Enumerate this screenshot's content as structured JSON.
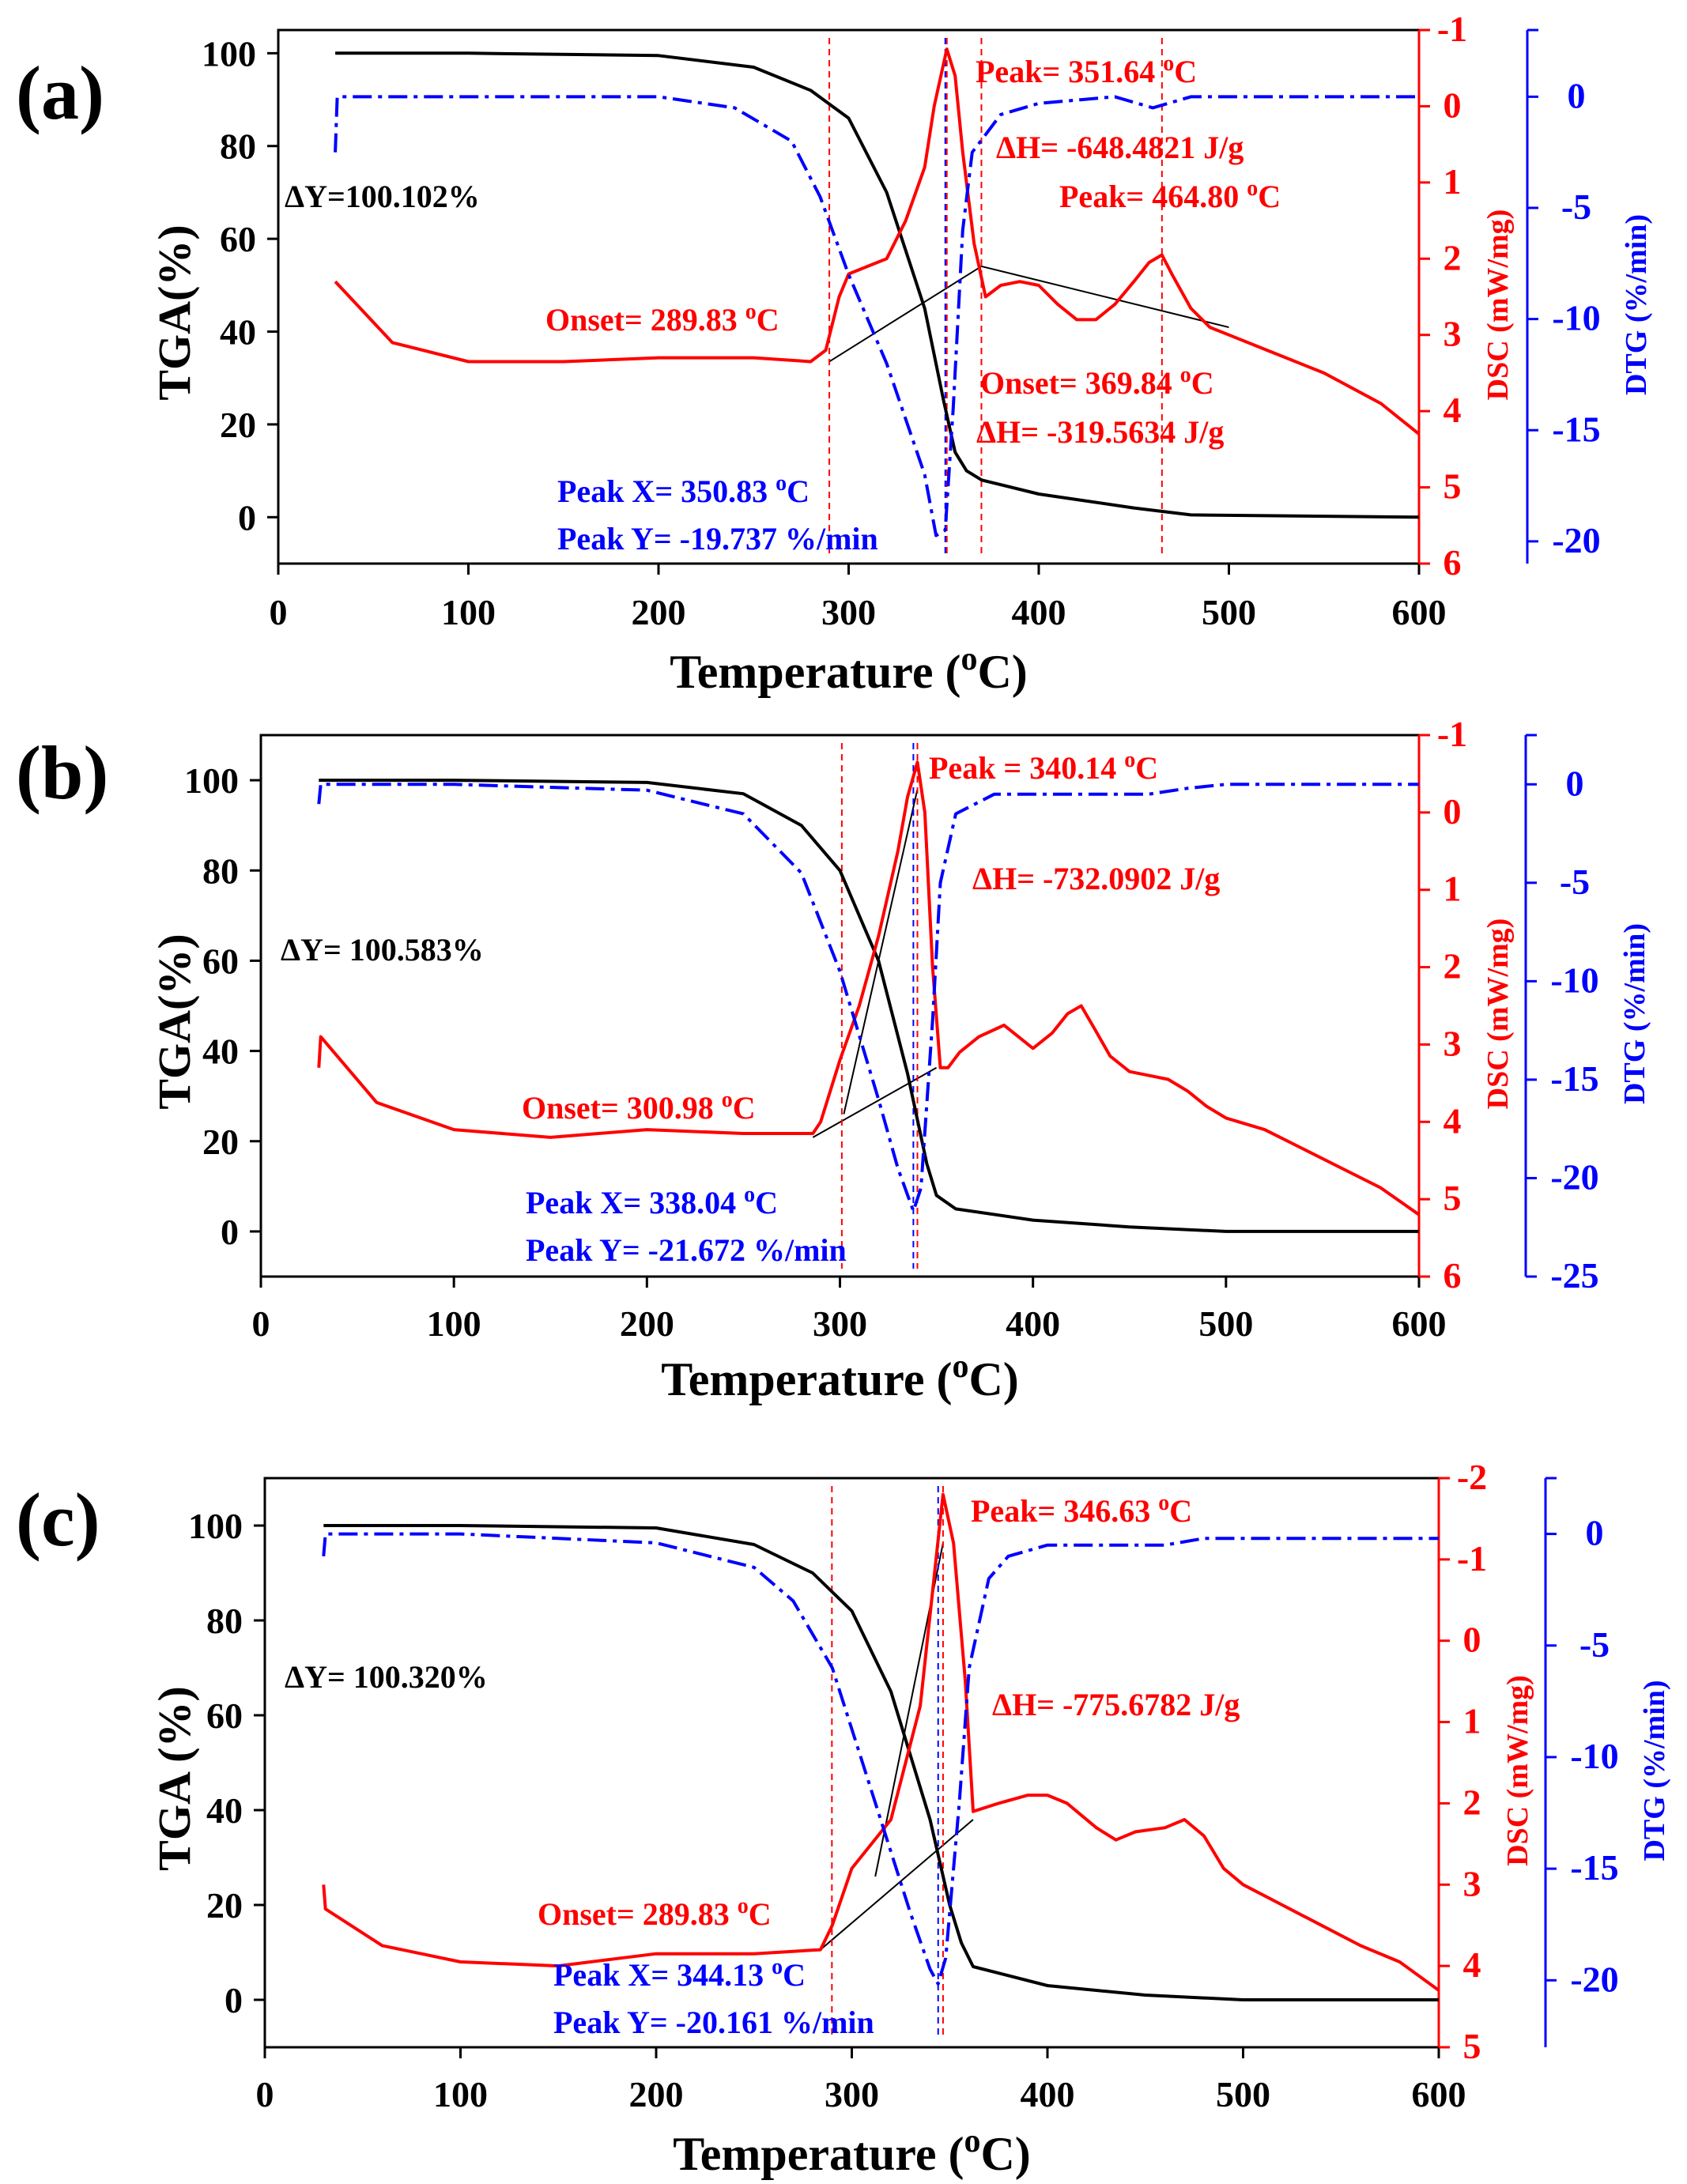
{
  "chart_data": [
    {
      "panel": "(a)",
      "type": "line",
      "xlabel": "Temperature (°C)",
      "xlim": [
        0,
        600
      ],
      "xticks": [
        0,
        100,
        200,
        300,
        400,
        500,
        600
      ],
      "y_left": {
        "label": "TGA(%)",
        "lim": [
          -10,
          105
        ],
        "ticks": [
          0,
          20,
          40,
          60,
          80,
          100
        ]
      },
      "y_dsc": {
        "label": "DSC (mW/mg)",
        "lim": [
          6,
          -1
        ],
        "ticks": [
          -1,
          0,
          1,
          2,
          3,
          4,
          5,
          6
        ],
        "color": "#ff0000"
      },
      "y_dtg": {
        "label": "DTG (%/min)",
        "lim": [
          -21,
          3
        ],
        "ticks": [
          0,
          -5,
          -10,
          -15,
          -20
        ],
        "color": "#0000ff"
      },
      "series": [
        {
          "name": "TGA",
          "axis": "left",
          "color": "#000000",
          "x": [
            30,
            100,
            200,
            250,
            280,
            300,
            320,
            340,
            350,
            356,
            362,
            370,
            400,
            450,
            480,
            600
          ],
          "y": [
            100,
            100,
            99.5,
            97,
            92,
            86,
            70,
            45,
            25,
            14,
            10,
            8,
            5,
            2,
            0.5,
            0
          ]
        },
        {
          "name": "DSC",
          "axis": "dsc",
          "color": "#ff0000",
          "x": [
            30,
            60,
            100,
            150,
            200,
            250,
            280,
            288,
            295,
            300,
            310,
            320,
            330,
            340,
            345,
            351.64,
            356,
            360,
            366,
            372,
            380,
            390,
            400,
            410,
            420,
            430,
            440,
            450,
            458,
            464.8,
            470,
            480,
            490,
            500,
            520,
            550,
            580,
            600
          ],
          "y": [
            2.3,
            3.1,
            3.35,
            3.35,
            3.3,
            3.3,
            3.35,
            3.2,
            2.5,
            2.2,
            2.1,
            2.0,
            1.5,
            0.8,
            0,
            -0.75,
            -0.4,
            0.6,
            1.8,
            2.5,
            2.35,
            2.3,
            2.35,
            2.6,
            2.8,
            2.8,
            2.6,
            2.3,
            2.05,
            1.95,
            2.2,
            2.65,
            2.9,
            3.0,
            3.2,
            3.5,
            3.9,
            4.3
          ]
        },
        {
          "name": "DTG",
          "axis": "dtg",
          "color": "#0000ff",
          "x": [
            30,
            31,
            100,
            200,
            240,
            270,
            285,
            300,
            320,
            340,
            346,
            350.83,
            355,
            360,
            365,
            380,
            400,
            440,
            460,
            480,
            600
          ],
          "y": [
            -2.5,
            0,
            0,
            0,
            -0.5,
            -2,
            -4.5,
            -8,
            -12,
            -17,
            -19.737,
            -19.5,
            -14,
            -6,
            -2.5,
            -0.8,
            -0.3,
            0,
            -0.5,
            0,
            0
          ]
        }
      ],
      "baselines": [
        {
          "x": [
            289.83,
            369.84
          ],
          "y": [
            3.35,
            2.1
          ]
        },
        {
          "x": [
            369.84,
            500
          ],
          "y": [
            2.1,
            2.9
          ]
        }
      ],
      "annotations": {
        "delta_y": "ΔY=100.102%",
        "peak1": "Peak= 351.64 °C",
        "dh1": "ΔH= -648.4821 J/g",
        "peak2": "Peak= 464.80 °C",
        "onset1": "Onset= 289.83 °C",
        "onset2": "Onset= 369.84 °C",
        "dh2": "ΔH= -319.5634 J/g",
        "peak_x": "Peak X= 350.83 °C",
        "peak_y": "Peak Y= -19.737 %/min"
      }
    },
    {
      "panel": "(b)",
      "type": "line",
      "xlabel": "Temperature (°C)",
      "xlim": [
        0,
        600
      ],
      "xticks": [
        0,
        100,
        200,
        300,
        400,
        500,
        600
      ],
      "y_left": {
        "label": "TGA(%)",
        "lim": [
          -10,
          110
        ],
        "ticks": [
          0,
          20,
          40,
          60,
          80,
          100
        ]
      },
      "y_dsc": {
        "label": "DSC (mW/mg)",
        "lim": [
          6,
          -1
        ],
        "ticks": [
          -1,
          0,
          1,
          2,
          3,
          4,
          5,
          6
        ],
        "color": "#ff0000"
      },
      "y_dtg": {
        "label": "DTG (%/min)",
        "lim": [
          -25,
          2.5
        ],
        "ticks": [
          0,
          -5,
          -10,
          -15,
          -20,
          -25
        ],
        "color": "#0000ff"
      },
      "series": [
        {
          "name": "TGA",
          "axis": "left",
          "color": "#000000",
          "x": [
            30,
            100,
            200,
            250,
            280,
            300,
            320,
            335,
            345,
            350,
            360,
            400,
            450,
            500,
            600
          ],
          "y": [
            100,
            100,
            99.5,
            97,
            90,
            80,
            60,
            35,
            15,
            8,
            5,
            2.5,
            1,
            0,
            0
          ]
        },
        {
          "name": "DSC",
          "axis": "dsc",
          "color": "#ff0000",
          "x": [
            30,
            31,
            60,
            100,
            150,
            200,
            250,
            286,
            290,
            300,
            310,
            320,
            330,
            335,
            340.14,
            344,
            348,
            352,
            356,
            362,
            372,
            385,
            400,
            410,
            418,
            425,
            432,
            440,
            450,
            460,
            470,
            480,
            490,
            500,
            520,
            540,
            560,
            580,
            600
          ],
          "y": [
            3.3,
            2.9,
            3.75,
            4.1,
            4.2,
            4.1,
            4.15,
            4.15,
            4.0,
            3.2,
            2.5,
            1.6,
            0.5,
            -0.2,
            -0.65,
            0,
            2.0,
            3.3,
            3.3,
            3.1,
            2.9,
            2.75,
            3.05,
            2.85,
            2.6,
            2.5,
            2.8,
            3.15,
            3.35,
            3.4,
            3.45,
            3.6,
            3.8,
            3.95,
            4.1,
            4.35,
            4.6,
            4.85,
            5.2
          ]
        },
        {
          "name": "DTG",
          "axis": "dtg",
          "color": "#0000ff",
          "x": [
            30,
            31,
            100,
            200,
            250,
            280,
            300,
            320,
            330,
            338.04,
            342,
            348,
            352,
            360,
            380,
            420,
            460,
            480,
            500,
            600
          ],
          "y": [
            -1,
            0,
            0,
            -0.3,
            -1.5,
            -4.5,
            -9.5,
            -16,
            -19.5,
            -21.672,
            -20.5,
            -12,
            -5,
            -1.5,
            -0.5,
            -0.5,
            -0.5,
            -0.2,
            0,
            0
          ]
        }
      ],
      "baselines": [
        {
          "x": [
            286,
            350
          ],
          "y": [
            4.2,
            3.3
          ]
        },
        {
          "x": [
            302,
            340.14
          ],
          "y": [
            3.9,
            -0.3
          ]
        }
      ],
      "annotations": {
        "delta_y": "ΔY= 100.583%",
        "peak1": "Peak = 340.14 °C",
        "dh1": "ΔH= -732.0902 J/g",
        "onset1": "Onset= 300.98 °C",
        "peak_x": "Peak X= 338.04 °C",
        "peak_y": "Peak Y= -21.672 %/min"
      }
    },
    {
      "panel": "(c)",
      "type": "line",
      "xlabel": "Temperature (°C)",
      "xlim": [
        0,
        600
      ],
      "xticks": [
        0,
        100,
        200,
        300,
        400,
        500,
        600
      ],
      "y_left": {
        "label": "TGA (%)",
        "lim": [
          -10,
          110
        ],
        "ticks": [
          0,
          20,
          40,
          60,
          80,
          100
        ]
      },
      "y_dsc": {
        "label": "DSC (mW/mg)",
        "lim": [
          5,
          -2
        ],
        "ticks": [
          -2,
          -1,
          0,
          1,
          2,
          3,
          4,
          5
        ],
        "color": "#ff0000"
      },
      "y_dtg": {
        "label": "DTG (%/min)",
        "lim": [
          -23,
          2.5
        ],
        "ticks": [
          0,
          -5,
          -10,
          -15,
          -20
        ],
        "color": "#0000ff"
      },
      "series": [
        {
          "name": "TGA",
          "axis": "left",
          "color": "#000000",
          "x": [
            30,
            100,
            200,
            250,
            280,
            300,
            320,
            340,
            350,
            356,
            362,
            400,
            450,
            500,
            600
          ],
          "y": [
            100,
            100,
            99.5,
            96,
            90,
            82,
            65,
            38,
            20,
            12,
            7,
            3,
            1,
            0,
            0
          ]
        },
        {
          "name": "DSC",
          "axis": "dsc",
          "color": "#ff0000",
          "x": [
            30,
            31,
            60,
            100,
            150,
            200,
            250,
            284,
            290,
            300,
            320,
            335,
            346.63,
            352,
            358,
            362,
            375,
            390,
            400,
            410,
            425,
            435,
            445,
            460,
            470,
            480,
            490,
            500,
            520,
            540,
            560,
            580,
            600
          ],
          "y": [
            3.0,
            3.3,
            3.75,
            3.95,
            4.0,
            3.85,
            3.85,
            3.8,
            3.5,
            2.8,
            2.2,
            0.8,
            -1.8,
            -1.2,
            0.5,
            2.1,
            2.0,
            1.9,
            1.9,
            2.0,
            2.3,
            2.45,
            2.35,
            2.3,
            2.2,
            2.4,
            2.8,
            3.0,
            3.25,
            3.5,
            3.75,
            3.95,
            4.3
          ]
        },
        {
          "name": "DTG",
          "axis": "dtg",
          "color": "#0000ff",
          "x": [
            30,
            31,
            100,
            200,
            250,
            270,
            290,
            310,
            330,
            340,
            344.13,
            348,
            355,
            360,
            370,
            380,
            400,
            440,
            460,
            480,
            600
          ],
          "y": [
            -1,
            0,
            0,
            -0.4,
            -1.5,
            -3,
            -6,
            -11.5,
            -17,
            -19.5,
            -20.161,
            -19,
            -12,
            -6,
            -2,
            -1,
            -0.5,
            -0.5,
            -0.5,
            -0.2,
            -0.2
          ]
        }
      ],
      "baselines": [
        {
          "x": [
            284,
            362
          ],
          "y": [
            3.8,
            2.2
          ]
        },
        {
          "x": [
            312,
            346.63
          ],
          "y": [
            2.9,
            -1.2
          ]
        }
      ],
      "annotations": {
        "delta_y": "ΔY= 100.320%",
        "peak1": "Peak= 346.63 °C",
        "dh1": "ΔH= -775.6782 J/g",
        "onset1": "Onset= 289.83 °C",
        "peak_x": "Peak X= 344.13 °C",
        "peak_y": "Peak Y= -20.161 %/min"
      }
    }
  ]
}
